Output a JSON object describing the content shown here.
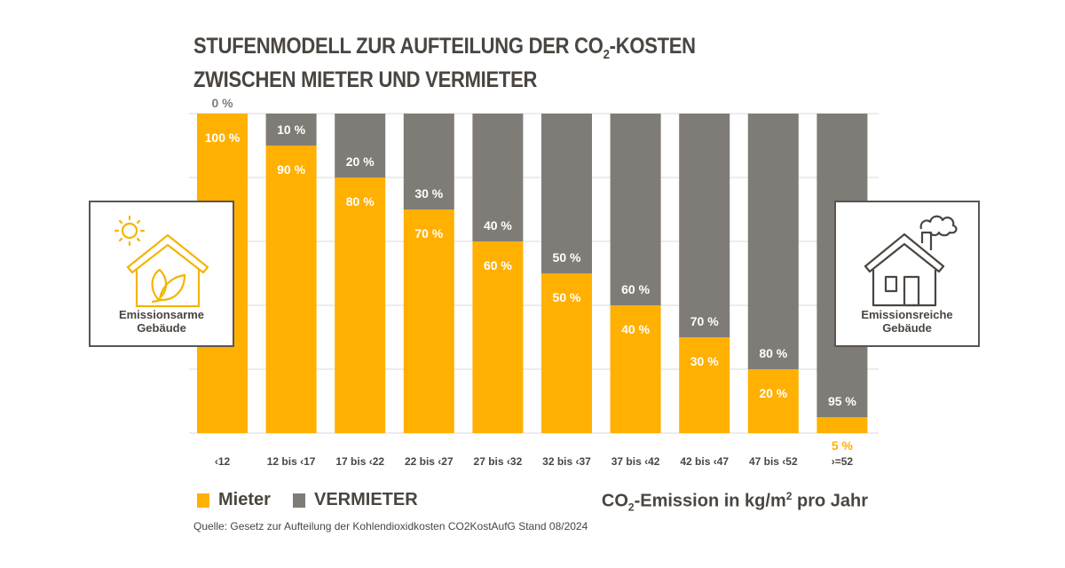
{
  "title_line1_pre": "STUFENMODELL ZUR AUFTEILUNG DER CO",
  "title_sub": "2",
  "title_line1_post": "-KOSTEN",
  "title_line2": "ZWISCHEN MIETER UND VERMIETER",
  "left_box": {
    "label_line1": "Emissionsarme",
    "label_line2": "Gebäude",
    "icon": "house-leaf-sun-icon"
  },
  "right_box": {
    "label_line1": "Emissionsreiche",
    "label_line2": "Gebäude",
    "icon": "house-chimney-smoke-icon"
  },
  "unit": {
    "pre": "CO",
    "sub": "2",
    "mid": "-Emission in kg/m",
    "sup": "2",
    "post": " pro Jahr"
  },
  "source": "Quelle: Gesetz zur Aufteilung der Kohlendioxidkosten CO2KostAufG  Stand 08/2024",
  "colors": {
    "mieter": "#FFB000",
    "vermieter": "#7F7C77",
    "text": "#4A4540",
    "grid": "#D9D9D9"
  },
  "chart_data": {
    "type": "bar",
    "stacked": true,
    "title": "STUFENMODELL ZUR AUFTEILUNG DER CO2-KOSTEN ZWISCHEN MIETER UND VERMIETER",
    "xlabel": "CO2-Emission in kg/m2 pro Jahr",
    "ylabel": "",
    "ylim": [
      0,
      100
    ],
    "grid": true,
    "legend_placement": "bottom-left",
    "categories": [
      "‹12",
      "12 bis ‹17",
      "17 bis ‹22",
      "22 bis ‹27",
      "27 bis ‹32",
      "32 bis ‹37",
      "37 bis ‹42",
      "42 bis ‹47",
      "47 bis ‹52",
      "›=52"
    ],
    "series": [
      {
        "name": "Mieter",
        "values": [
          100,
          90,
          80,
          70,
          60,
          50,
          40,
          30,
          20,
          5
        ],
        "labels": [
          "100 %",
          "90 %",
          "80 %",
          "70 %",
          "60 %",
          "50 %",
          "40 %",
          "30 %",
          "20 %",
          "5 %"
        ]
      },
      {
        "name": "VERMIETER",
        "values": [
          0,
          10,
          20,
          30,
          40,
          50,
          60,
          70,
          80,
          95
        ],
        "labels": [
          "0 %",
          "10 %",
          "20 %",
          "30 %",
          "40 %",
          "50 %",
          "60 %",
          "70 %",
          "80 %",
          "95 %"
        ]
      }
    ]
  }
}
